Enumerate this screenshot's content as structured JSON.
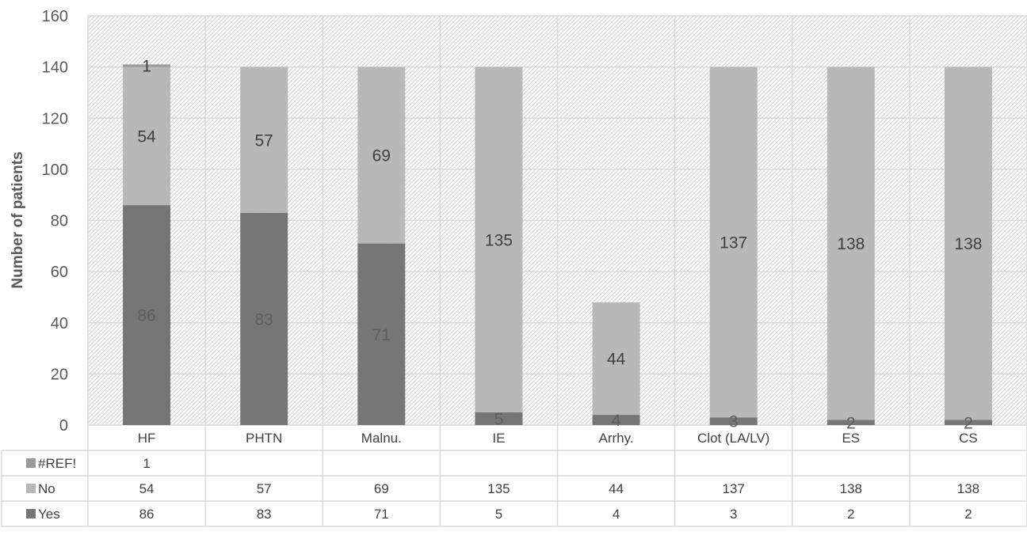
{
  "chart_data": {
    "type": "bar",
    "stacked": true,
    "categories": [
      "HF",
      "PHTN",
      "Malnu.",
      "IE",
      "Arrhy.",
      "Clot (LA/LV)",
      "ES",
      "CS"
    ],
    "series": [
      {
        "name": "Yes",
        "values": [
          86,
          83,
          71,
          5,
          4,
          3,
          2,
          2
        ],
        "color": "#767676",
        "label_color": "#5e5e5e"
      },
      {
        "name": "No",
        "values": [
          54,
          57,
          69,
          135,
          44,
          137,
          138,
          138
        ],
        "color": "#b8b8b8",
        "label_color": "#404040"
      },
      {
        "name": "#REF!",
        "values": [
          1,
          null,
          null,
          null,
          null,
          null,
          null,
          null
        ],
        "color": "#9b9b9b",
        "label_color": "#404040"
      }
    ],
    "ylabel": "Number of patients",
    "ylim": [
      0,
      160
    ],
    "yticks": [
      0,
      20,
      40,
      60,
      80,
      100,
      120,
      140,
      160
    ],
    "grid": true,
    "data_table": true,
    "legend": "data-table keys",
    "colors": {
      "hatch": "#d0d0d0",
      "grid": "#d9d9d9",
      "table_text": "#404040",
      "axis_text": "#595959"
    }
  }
}
